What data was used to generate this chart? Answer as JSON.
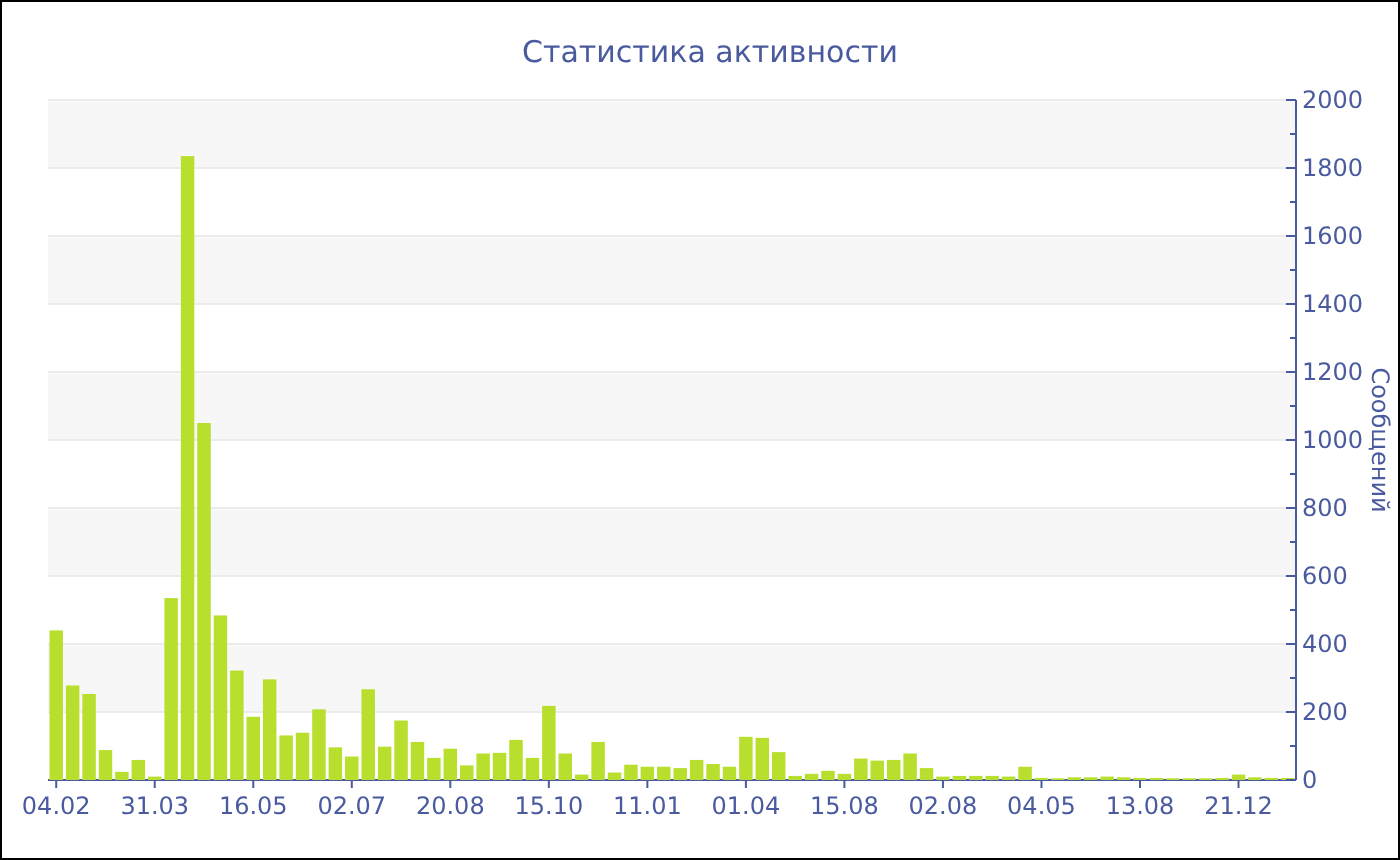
{
  "chart_data": {
    "type": "bar",
    "title": "Статистика активности",
    "ylabel": "Сообщений",
    "categories": [
      "04.02",
      null,
      null,
      null,
      null,
      null,
      "31.03",
      null,
      null,
      null,
      null,
      null,
      "16.05",
      null,
      null,
      null,
      null,
      null,
      "02.07",
      null,
      null,
      null,
      null,
      null,
      "20.08",
      null,
      null,
      null,
      null,
      null,
      "15.10",
      null,
      null,
      null,
      null,
      null,
      "11.01",
      null,
      null,
      null,
      null,
      null,
      "01.04",
      null,
      null,
      null,
      null,
      null,
      "15.08",
      null,
      null,
      null,
      null,
      null,
      "02.08",
      null,
      null,
      null,
      null,
      null,
      "04.05",
      null,
      null,
      null,
      null,
      null,
      "13.08",
      null,
      null,
      null,
      null,
      null,
      "21.12",
      null,
      null,
      null
    ],
    "values": [
      440,
      278,
      253,
      88,
      24,
      59,
      10,
      535,
      1835,
      1050,
      484,
      322,
      186,
      296,
      131,
      139,
      208,
      96,
      69,
      267,
      98,
      175,
      112,
      65,
      92,
      43,
      78,
      80,
      118,
      65,
      218,
      78,
      16,
      112,
      22,
      45,
      39,
      39,
      35,
      59,
      47,
      39,
      127,
      124,
      82,
      12,
      18,
      27,
      18,
      63,
      57,
      59,
      78,
      35,
      10,
      12,
      12,
      12,
      10,
      39,
      6,
      5,
      8,
      8,
      10,
      8,
      6,
      6,
      5,
      5,
      5,
      6,
      16,
      8,
      6,
      6
    ],
    "color": "#b8df2e",
    "ylim": [
      0,
      2000
    ],
    "yticks": [
      0,
      {
        "value": 100,
        "label": null
      },
      200,
      {
        "value": 300,
        "label": null
      },
      400,
      {
        "value": 500,
        "label": null
      },
      600,
      {
        "value": 700,
        "label": null
      },
      800,
      {
        "value": 900,
        "label": null
      },
      1000,
      {
        "value": 1100,
        "label": null
      },
      1200,
      {
        "value": 1300,
        "label": null
      },
      1400,
      {
        "value": 1500,
        "label": null
      },
      1600,
      {
        "value": 1700,
        "label": null
      },
      1800,
      {
        "value": 1900,
        "label": null
      },
      2000
    ],
    "grid": "y"
  }
}
